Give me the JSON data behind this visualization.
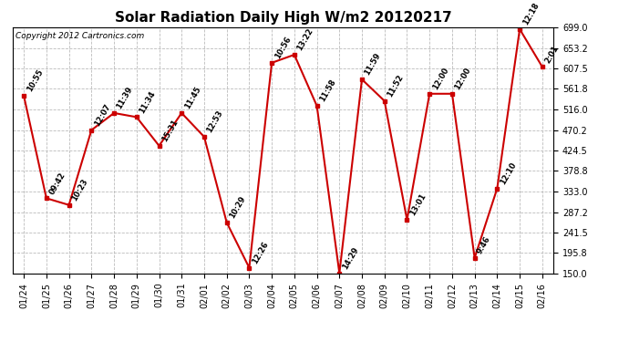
{
  "title": "Solar Radiation Daily High W/m2 20120217",
  "copyright": "Copyright 2012 Cartronics.com",
  "dates": [
    "01/24",
    "01/25",
    "01/26",
    "01/27",
    "01/28",
    "01/29",
    "01/30",
    "01/31",
    "02/01",
    "02/02",
    "02/03",
    "02/04",
    "02/05",
    "02/06",
    "02/07",
    "02/08",
    "02/09",
    "02/10",
    "02/11",
    "02/12",
    "02/13",
    "02/14",
    "02/15",
    "02/16"
  ],
  "values": [
    546,
    318,
    303,
    470,
    508,
    499,
    435,
    508,
    455,
    264,
    163,
    620,
    638,
    524,
    151,
    583,
    535,
    270,
    551,
    551,
    185,
    340,
    695,
    611
  ],
  "time_labels": [
    "10:55",
    "09:42",
    "10:23",
    "12:07",
    "11:39",
    "11:34",
    "15:31",
    "11:45",
    "12:53",
    "10:29",
    "12:26",
    "10:56",
    "13:22",
    "11:58",
    "14:29",
    "11:59",
    "11:52",
    "13:01",
    "12:00",
    "12:00",
    "9:46",
    "12:10",
    "12:18",
    "2:01"
  ],
  "ylim_min": 150.0,
  "ylim_max": 699.0,
  "yticks": [
    150.0,
    195.8,
    241.5,
    287.2,
    333.0,
    378.8,
    424.5,
    470.2,
    516.0,
    561.8,
    607.5,
    653.2,
    699.0
  ],
  "line_color": "#cc0000",
  "marker_color": "#cc0000",
  "bg_color": "#ffffff",
  "grid_color": "#bbbbbb",
  "title_fontsize": 11,
  "tick_fontsize": 7,
  "annot_fontsize": 6
}
